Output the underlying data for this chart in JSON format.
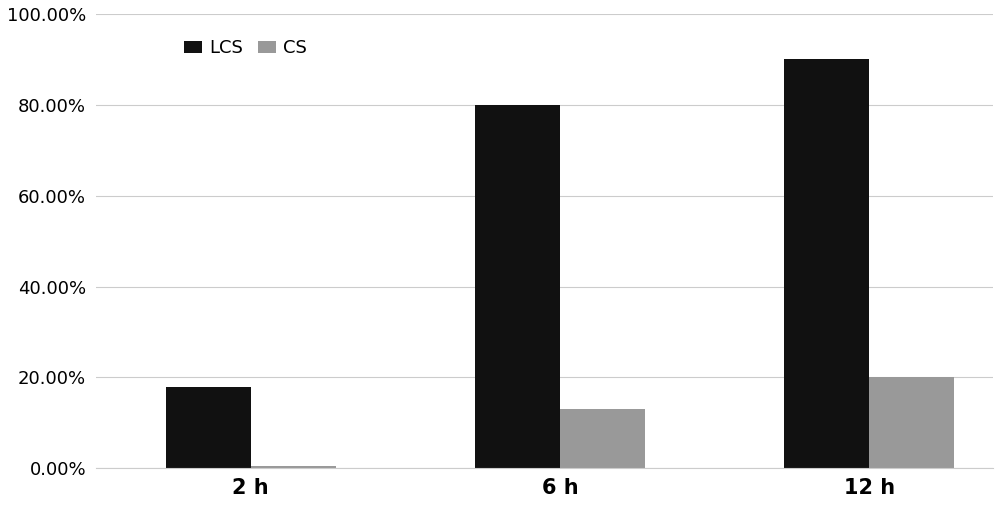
{
  "categories": [
    "2 h",
    "6 h",
    "12 h"
  ],
  "lcs_values": [
    0.18,
    0.8,
    0.9
  ],
  "cs_values": [
    0.005,
    0.13,
    0.2
  ],
  "lcs_color": "#111111",
  "cs_color": "#999999",
  "lcs_label": "LCS",
  "cs_label": "CS",
  "ylim": [
    0,
    1.0
  ],
  "yticks": [
    0.0,
    0.2,
    0.4,
    0.6,
    0.8,
    1.0
  ],
  "bar_width": 0.55,
  "background_color": "#ffffff",
  "grid_color": "#cccccc",
  "tick_label_fontsize": 13,
  "legend_fontsize": 13,
  "xticklabel_fontsize": 15,
  "x_positions": [
    1.0,
    3.0,
    5.0
  ]
}
